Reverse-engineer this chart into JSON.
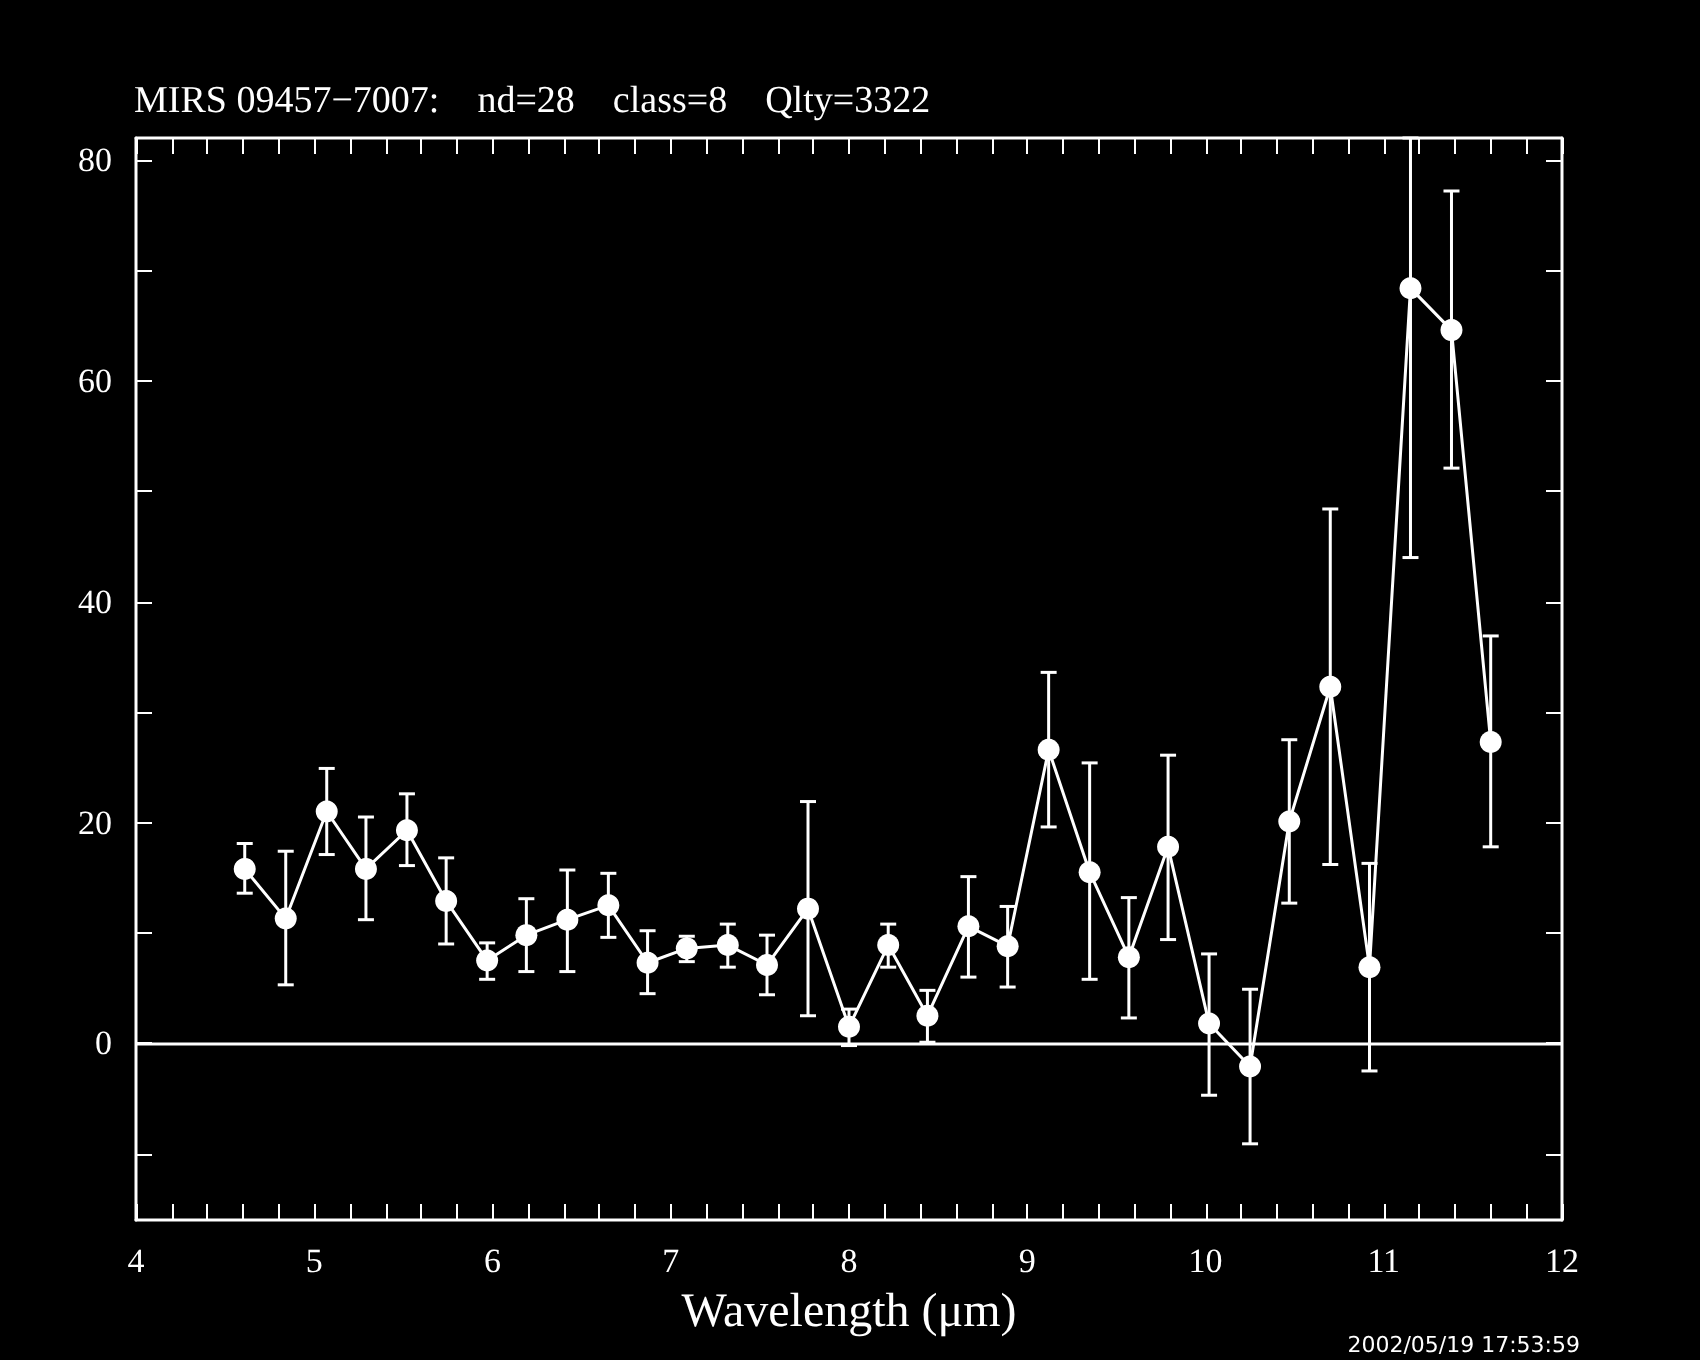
{
  "chart_data": {
    "type": "line",
    "title": "MIRS 09457−7007:    nd=28    class=8    Qlty=3322",
    "xlabel": "Wavelength (μm)",
    "x": [
      4.61,
      4.84,
      5.07,
      5.29,
      5.52,
      5.74,
      5.97,
      6.19,
      6.42,
      6.65,
      6.87,
      7.09,
      7.32,
      7.54,
      7.77,
      8.0,
      8.22,
      8.44,
      8.67,
      8.89,
      9.12,
      9.35,
      9.57,
      9.79,
      10.02,
      10.25,
      10.47,
      10.7,
      10.92,
      11.15,
      11.38,
      11.6
    ],
    "series": [
      {
        "color": "#ffffff",
        "values": [
          15.8,
          11.3,
          21.0,
          15.8,
          19.3,
          12.9,
          7.5,
          9.8,
          11.2,
          12.5,
          7.3,
          8.6,
          8.9,
          7.1,
          12.2,
          1.5,
          8.9,
          2.5,
          10.6,
          8.8,
          26.6,
          15.5,
          7.8,
          17.8,
          1.8,
          -2.1,
          20.1,
          32.3,
          6.9,
          68.4,
          64.6,
          27.3
        ],
        "errors": [
          [
            13.6,
            18.1
          ],
          [
            5.3,
            17.4
          ],
          [
            17.1,
            24.9
          ],
          [
            11.2,
            20.5
          ],
          [
            16.1,
            22.6
          ],
          [
            9.0,
            16.8
          ],
          [
            5.8,
            9.1
          ],
          [
            6.5,
            13.1
          ],
          [
            6.5,
            15.7
          ],
          [
            9.6,
            15.4
          ],
          [
            4.5,
            10.2
          ],
          [
            7.4,
            9.7
          ],
          [
            6.9,
            10.8
          ],
          [
            4.4,
            9.8
          ],
          [
            2.5,
            21.9
          ],
          [
            -0.2,
            3.1
          ],
          [
            6.9,
            10.8
          ],
          [
            0.1,
            4.8
          ],
          [
            6.0,
            15.1
          ],
          [
            5.1,
            12.4
          ],
          [
            19.6,
            33.6
          ],
          [
            5.8,
            25.4
          ],
          [
            2.3,
            13.2
          ],
          [
            9.4,
            26.1
          ],
          [
            -4.7,
            8.1
          ],
          [
            -9.1,
            4.9
          ],
          [
            12.7,
            27.5
          ],
          [
            16.2,
            48.4
          ],
          [
            -2.5,
            16.3
          ],
          [
            44.0,
            82
          ],
          [
            52.1,
            77.2
          ],
          [
            17.8,
            36.9
          ]
        ]
      }
    ],
    "xlim": [
      4,
      12
    ],
    "xticks": [
      4,
      {
        "value": 4.2,
        "label": null
      },
      {
        "value": 4.4,
        "label": null
      },
      {
        "value": 4.6,
        "label": null
      },
      {
        "value": 4.8,
        "label": null
      },
      5,
      {
        "value": 5.2,
        "label": null
      },
      {
        "value": 5.4,
        "label": null
      },
      {
        "value": 5.6,
        "label": null
      },
      {
        "value": 5.8,
        "label": null
      },
      6,
      {
        "value": 6.2,
        "label": null
      },
      {
        "value": 6.4,
        "label": null
      },
      {
        "value": 6.6,
        "label": null
      },
      {
        "value": 6.8,
        "label": null
      },
      7,
      {
        "value": 7.2,
        "label": null
      },
      {
        "value": 7.4,
        "label": null
      },
      {
        "value": 7.6,
        "label": null
      },
      {
        "value": 7.8,
        "label": null
      },
      8,
      {
        "value": 8.2,
        "label": null
      },
      {
        "value": 8.4,
        "label": null
      },
      {
        "value": 8.6,
        "label": null
      },
      {
        "value": 8.8,
        "label": null
      },
      9,
      {
        "value": 9.2,
        "label": null
      },
      {
        "value": 9.4,
        "label": null
      },
      {
        "value": 9.6,
        "label": null
      },
      {
        "value": 9.8,
        "label": null
      },
      10,
      {
        "value": 10.2,
        "label": null
      },
      {
        "value": 10.4,
        "label": null
      },
      {
        "value": 10.6,
        "label": null
      },
      {
        "value": 10.8,
        "label": null
      },
      11,
      {
        "value": 11.2,
        "label": null
      },
      {
        "value": 11.4,
        "label": null
      },
      {
        "value": 11.6,
        "label": null
      },
      {
        "value": 11.8,
        "label": null
      },
      12
    ],
    "ylim": [
      -16,
      82
    ],
    "yticks": [
      {
        "value": -10,
        "label": null
      },
      0,
      {
        "value": 10,
        "label": null
      },
      20,
      {
        "value": 30,
        "label": null
      },
      40,
      {
        "value": 50,
        "label": null
      },
      60,
      {
        "value": 70,
        "label": null
      },
      80
    ],
    "ref_lines": [
      {
        "axis": "y",
        "value": 0,
        "color": "#ffffff"
      }
    ],
    "annotations": [
      "2002/05/19 17:53:59"
    ],
    "marker": "circle",
    "line_style": "solid"
  }
}
